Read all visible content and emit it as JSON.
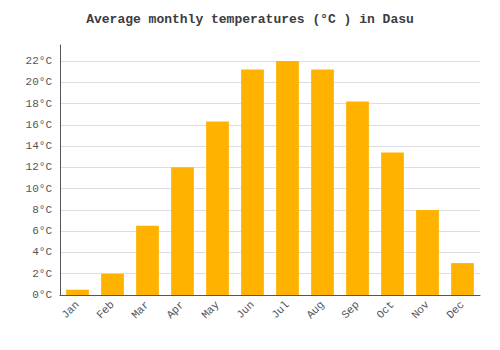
{
  "chart_data": {
    "type": "bar",
    "title": "Average monthly temperatures (°C ) in Dasu",
    "categories": [
      "Jan",
      "Feb",
      "Mar",
      "Apr",
      "May",
      "Jun",
      "Jul",
      "Aug",
      "Sep",
      "Oct",
      "Nov",
      "Dec"
    ],
    "values": [
      0.5,
      2.0,
      6.5,
      12.0,
      16.3,
      21.2,
      22.0,
      21.2,
      18.2,
      13.4,
      8.0,
      3.0
    ],
    "color": "#FFB300",
    "ylim": [
      0,
      23.5
    ],
    "yticks": [
      {
        "value": 0,
        "label": "0°C"
      },
      {
        "value": 2,
        "label": "2°C"
      },
      {
        "value": 4,
        "label": "4°C"
      },
      {
        "value": 6,
        "label": "6°C"
      },
      {
        "value": 8,
        "label": "8°C"
      },
      {
        "value": 10,
        "label": "10°C"
      },
      {
        "value": 12,
        "label": "12°C"
      },
      {
        "value": 14,
        "label": "14°C"
      },
      {
        "value": 16,
        "label": "16°C"
      },
      {
        "value": 18,
        "label": "18°C"
      },
      {
        "value": 20,
        "label": "20°C"
      },
      {
        "value": 22,
        "label": "22°C"
      }
    ],
    "grid": true
  }
}
